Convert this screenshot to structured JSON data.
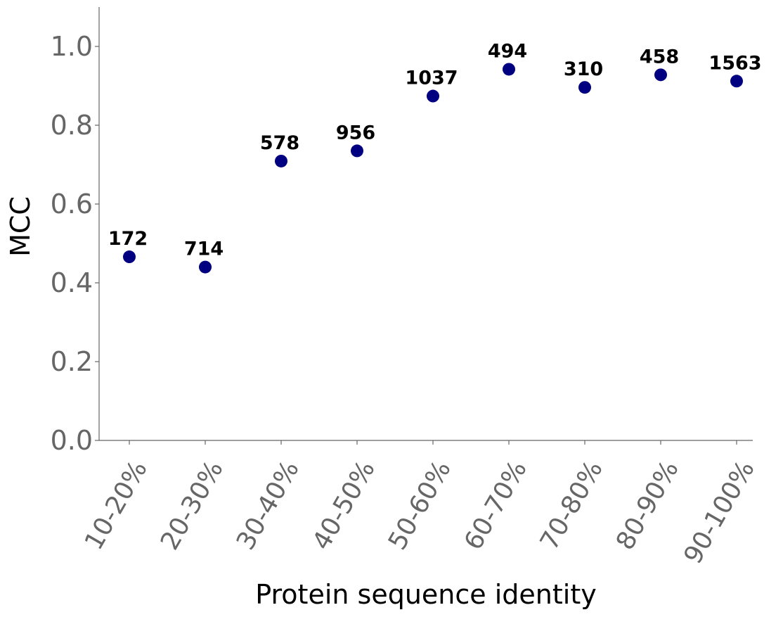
{
  "chart_data": {
    "type": "scatter",
    "title": "",
    "xlabel": "Protein sequence identity",
    "ylabel": "MCC",
    "categories": [
      "10-20%",
      "20-30%",
      "30-40%",
      "40-50%",
      "50-60%",
      "60-70%",
      "70-80%",
      "80-90%",
      "90-100%"
    ],
    "values": [
      0.466,
      0.44,
      0.709,
      0.735,
      0.874,
      0.942,
      0.896,
      0.928,
      0.912
    ],
    "point_labels": [
      "172",
      "714",
      "578",
      "956",
      "1037",
      "494",
      "310",
      "458",
      "1563"
    ],
    "ylim": [
      0.0,
      1.1
    ],
    "yticks": [
      0.0,
      0.2,
      0.4,
      0.6,
      0.8,
      1.0
    ],
    "ytick_labels": [
      "0.0",
      "0.2",
      "0.4",
      "0.6",
      "0.8",
      "1.0"
    ],
    "grid": false,
    "legend": "none",
    "marker_color": "#000080",
    "axis_color": "#666666"
  }
}
